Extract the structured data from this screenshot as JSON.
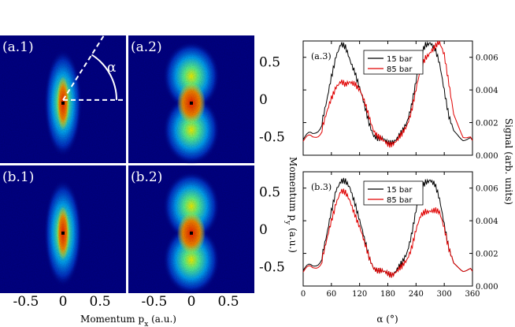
{
  "chart_data": [
    {
      "type": "heatmap",
      "panels": [
        {
          "label": "(a.1)",
          "shape": "elongated",
          "annotation": "α"
        },
        {
          "label": "(a.2)",
          "shape": "hourglass"
        },
        {
          "label": "(b.1)",
          "shape": "elongated"
        },
        {
          "label": "(b.2)",
          "shape": "hourglass"
        }
      ],
      "xlabel": "Momentum p",
      "xlabel_sub": "x",
      "xlabel_unit": " (a.u.)",
      "ylabel": "Momentum p",
      "ylabel_sub": "y",
      "ylabel_unit": " (a.u.)",
      "xticks": [
        "-0.5",
        "0",
        "0.5"
      ],
      "yticks": [
        "0.5",
        "0",
        "-0.5"
      ],
      "xlim": [
        -0.85,
        0.85
      ],
      "ylim": [
        -0.85,
        0.85
      ],
      "colormap": [
        "#000080",
        "#0000ff",
        "#00a0ff",
        "#40ffc0",
        "#ffff00",
        "#ff8000",
        "#cc0000",
        "#000000"
      ]
    },
    {
      "type": "line",
      "panel_label": "(a.3)",
      "xlim": [
        0,
        360
      ],
      "ylim": [
        0,
        0.007
      ],
      "xticks": [
        0,
        60,
        120,
        180,
        240,
        300,
        360
      ],
      "yticks": [
        "0.000",
        "0.002",
        "0.004",
        "0.006"
      ],
      "series": [
        {
          "name": "15 bar",
          "color": "#000000",
          "x": [
            0,
            20,
            40,
            50,
            60,
            70,
            80,
            90,
            100,
            110,
            120,
            130,
            140,
            150,
            160,
            170,
            180,
            190,
            200,
            210,
            220,
            230,
            240,
            250,
            260,
            270,
            280,
            290,
            300,
            310,
            320,
            340,
            360
          ],
          "y": [
            0.001,
            0.0012,
            0.002,
            0.0032,
            0.0048,
            0.0062,
            0.0068,
            0.0065,
            0.0058,
            0.0052,
            0.0041,
            0.003,
            0.002,
            0.0013,
            0.001,
            0.0009,
            0.0008,
            0.0009,
            0.001,
            0.0013,
            0.002,
            0.0031,
            0.0045,
            0.006,
            0.0068,
            0.007,
            0.0065,
            0.0055,
            0.004,
            0.0025,
            0.0015,
            0.001,
            0.0009
          ]
        },
        {
          "name": "85 bar",
          "color": "#e00000",
          "x": [
            0,
            20,
            40,
            50,
            60,
            70,
            80,
            90,
            100,
            110,
            120,
            130,
            140,
            150,
            160,
            170,
            180,
            190,
            200,
            210,
            220,
            230,
            240,
            250,
            260,
            270,
            280,
            290,
            300,
            310,
            320,
            340,
            360
          ],
          "y": [
            0.0009,
            0.001,
            0.0016,
            0.0025,
            0.0035,
            0.0043,
            0.0045,
            0.0042,
            0.0045,
            0.0045,
            0.004,
            0.0032,
            0.0024,
            0.0016,
            0.0011,
            0.0008,
            0.0007,
            0.0008,
            0.0009,
            0.0012,
            0.0018,
            0.0028,
            0.004,
            0.0052,
            0.006,
            0.0064,
            0.0066,
            0.0068,
            0.0062,
            0.0045,
            0.0025,
            0.0012,
            0.0009
          ]
        }
      ]
    },
    {
      "type": "line",
      "panel_label": "(b.3)",
      "xlim": [
        0,
        360
      ],
      "ylim": [
        0,
        0.007
      ],
      "xticks": [
        0,
        60,
        120,
        180,
        240,
        300,
        360
      ],
      "yticks": [
        "0.000",
        "0.002",
        "0.004",
        "0.006"
      ],
      "xlabel": "α (°)",
      "series": [
        {
          "name": "15 bar",
          "color": "#000000",
          "x": [
            0,
            20,
            40,
            50,
            60,
            70,
            80,
            90,
            100,
            110,
            120,
            130,
            140,
            150,
            160,
            170,
            180,
            190,
            200,
            210,
            220,
            230,
            240,
            250,
            260,
            270,
            280,
            290,
            300,
            310,
            320,
            340,
            360
          ],
          "y": [
            0.001,
            0.0011,
            0.0018,
            0.003,
            0.0046,
            0.006,
            0.0064,
            0.0063,
            0.006,
            0.0052,
            0.004,
            0.0028,
            0.0018,
            0.0012,
            0.0009,
            0.0008,
            0.0008,
            0.0008,
            0.001,
            0.0013,
            0.002,
            0.0032,
            0.0046,
            0.0058,
            0.0064,
            0.0066,
            0.0062,
            0.0052,
            0.0038,
            0.0024,
            0.0014,
            0.001,
            0.0009
          ]
        },
        {
          "name": "85 bar",
          "color": "#e00000",
          "x": [
            0,
            20,
            40,
            50,
            60,
            70,
            80,
            90,
            100,
            110,
            120,
            130,
            140,
            150,
            160,
            170,
            180,
            190,
            200,
            210,
            220,
            230,
            240,
            250,
            260,
            270,
            280,
            290,
            300,
            310,
            320,
            340,
            360
          ],
          "y": [
            0.0009,
            0.001,
            0.0016,
            0.0027,
            0.004,
            0.0052,
            0.0058,
            0.0056,
            0.0052,
            0.0045,
            0.0036,
            0.0026,
            0.0018,
            0.0012,
            0.0009,
            0.0008,
            0.0008,
            0.0008,
            0.0009,
            0.0011,
            0.0016,
            0.0024,
            0.0034,
            0.0042,
            0.0046,
            0.0047,
            0.0046,
            0.0044,
            0.0036,
            0.0024,
            0.0014,
            0.001,
            0.0009
          ]
        }
      ]
    }
  ],
  "signal_label": "Signal (arb. units)"
}
